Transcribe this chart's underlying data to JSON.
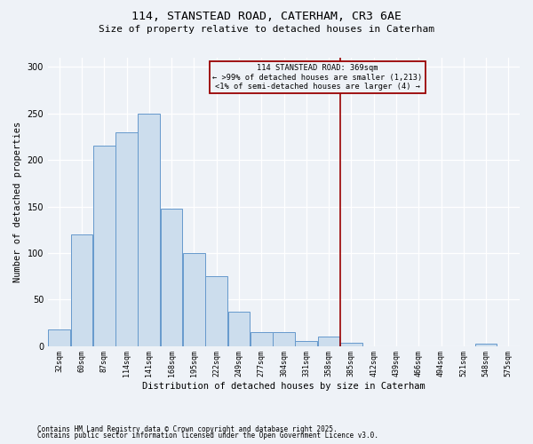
{
  "title1": "114, STANSTEAD ROAD, CATERHAM, CR3 6AE",
  "title2": "Size of property relative to detached houses in Caterham",
  "xlabel": "Distribution of detached houses by size in Caterham",
  "ylabel": "Number of detached properties",
  "footnote1": "Contains HM Land Registry data © Crown copyright and database right 2025.",
  "footnote2": "Contains public sector information licensed under the Open Government Licence v3.0.",
  "annotation_line1": "114 STANSTEAD ROAD: 369sqm",
  "annotation_line2": "← >99% of detached houses are smaller (1,213)",
  "annotation_line3": "<1% of semi-detached houses are larger (4) →",
  "bar_color": "#ccdded",
  "bar_edge_color": "#6699cc",
  "vline_color": "#990000",
  "vline_x_bin_index": 12,
  "annotation_box_edge": "#990000",
  "bin_labels": [
    "32sqm",
    "60sqm",
    "87sqm",
    "114sqm",
    "141sqm",
    "168sqm",
    "195sqm",
    "222sqm",
    "249sqm",
    "277sqm",
    "304sqm",
    "331sqm",
    "358sqm",
    "385sqm",
    "412sqm",
    "439sqm",
    "466sqm",
    "494sqm",
    "521sqm",
    "548sqm",
    "575sqm"
  ],
  "values": [
    18,
    120,
    215,
    230,
    250,
    148,
    100,
    75,
    37,
    15,
    15,
    5,
    10,
    3,
    0,
    0,
    0,
    0,
    0,
    2,
    0
  ],
  "ylim": [
    0,
    310
  ],
  "yticks": [
    0,
    50,
    100,
    150,
    200,
    250,
    300
  ],
  "bg_color": "#eef2f7",
  "title1_fontsize": 9.5,
  "title2_fontsize": 8,
  "footnote_fontsize": 5.5,
  "ylabel_fontsize": 7.5,
  "xlabel_fontsize": 7.5,
  "tick_fontsize": 6,
  "ytick_fontsize": 7
}
